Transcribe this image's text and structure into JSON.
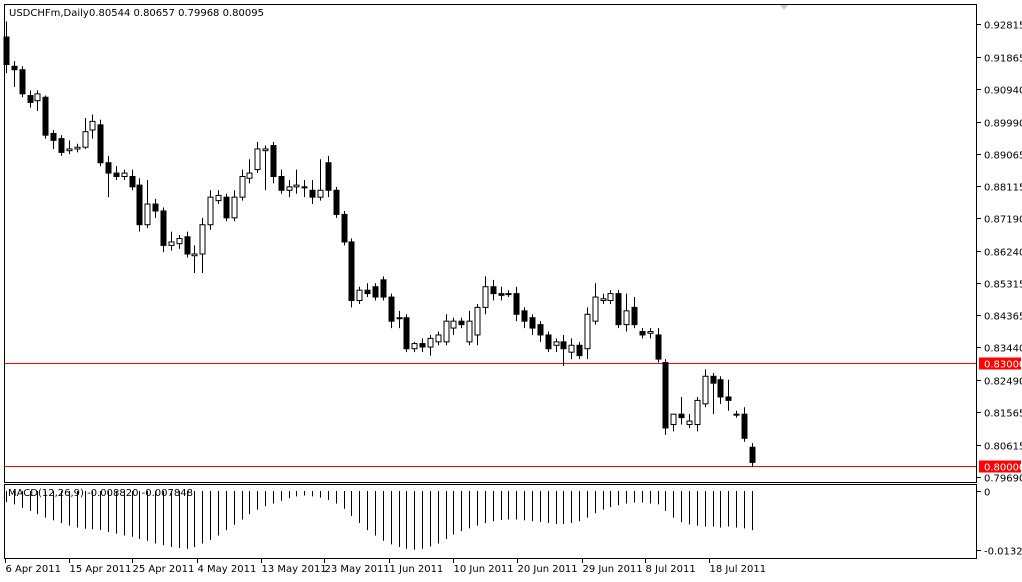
{
  "header": {
    "symbol": "USDCHFm,Daily",
    "ohlc": "0.80544 0.80657 0.79968 0.80095"
  },
  "indicator": {
    "label": "MACD(12,26,9) -0.008820 -0.007848"
  },
  "colors": {
    "background": "#ffffff",
    "border": "#000000",
    "candle_body_bear": "#000000",
    "candle_body_bull": "#ffffff",
    "hline": "#ff0000",
    "hline_label_bg": "#ff0000",
    "hline_label_text": "#ffffff"
  },
  "chart_data": {
    "type": "candlestick",
    "y_ticks": [
      "0.92815",
      "0.91865",
      "0.90940",
      "0.89990",
      "0.89065",
      "0.88115",
      "0.87190",
      "0.86240",
      "0.85315",
      "0.84365",
      "0.83440",
      "0.82490",
      "0.81565",
      "0.80615",
      "0.79690"
    ],
    "x_ticks": [
      "6 Apr 2011",
      "15 Apr 2011",
      "25 Apr 2011",
      "4 May 2011",
      "13 May 2011",
      "23 May 2011",
      "1 Jun 2011",
      "10 Jun 2011",
      "20 Jun 2011",
      "29 Jun 2011",
      "8 Jul 2011",
      "18 Jul 2011"
    ],
    "ylim": [
      0.7956,
      0.9335
    ],
    "horizontal_lines": [
      {
        "value": 0.83,
        "label": "0.83000"
      },
      {
        "value": 0.8,
        "label": "0.80000"
      }
    ],
    "candles": [
      {
        "o": 0.9245,
        "h": 0.929,
        "l": 0.914,
        "c": 0.9165
      },
      {
        "o": 0.916,
        "h": 0.9175,
        "l": 0.91,
        "c": 0.915
      },
      {
        "o": 0.915,
        "h": 0.916,
        "l": 0.907,
        "c": 0.908
      },
      {
        "o": 0.9075,
        "h": 0.909,
        "l": 0.904,
        "c": 0.9055
      },
      {
        "o": 0.906,
        "h": 0.909,
        "l": 0.903,
        "c": 0.908
      },
      {
        "o": 0.907,
        "h": 0.9075,
        "l": 0.895,
        "c": 0.896
      },
      {
        "o": 0.8965,
        "h": 0.8975,
        "l": 0.892,
        "c": 0.8945
      },
      {
        "o": 0.895,
        "h": 0.896,
        "l": 0.89,
        "c": 0.891
      },
      {
        "o": 0.8915,
        "h": 0.8945,
        "l": 0.8905,
        "c": 0.892
      },
      {
        "o": 0.892,
        "h": 0.8935,
        "l": 0.891,
        "c": 0.8925
      },
      {
        "o": 0.8925,
        "h": 0.901,
        "l": 0.892,
        "c": 0.897
      },
      {
        "o": 0.8975,
        "h": 0.902,
        "l": 0.895,
        "c": 0.9
      },
      {
        "o": 0.899,
        "h": 0.9005,
        "l": 0.887,
        "c": 0.888
      },
      {
        "o": 0.888,
        "h": 0.89,
        "l": 0.878,
        "c": 0.885
      },
      {
        "o": 0.885,
        "h": 0.887,
        "l": 0.883,
        "c": 0.884
      },
      {
        "o": 0.884,
        "h": 0.886,
        "l": 0.883,
        "c": 0.885
      },
      {
        "o": 0.884,
        "h": 0.886,
        "l": 0.88,
        "c": 0.881
      },
      {
        "o": 0.8815,
        "h": 0.8835,
        "l": 0.868,
        "c": 0.87
      },
      {
        "o": 0.87,
        "h": 0.883,
        "l": 0.869,
        "c": 0.876
      },
      {
        "o": 0.876,
        "h": 0.8775,
        "l": 0.872,
        "c": 0.874
      },
      {
        "o": 0.874,
        "h": 0.875,
        "l": 0.862,
        "c": 0.864
      },
      {
        "o": 0.864,
        "h": 0.868,
        "l": 0.8625,
        "c": 0.865
      },
      {
        "o": 0.8645,
        "h": 0.867,
        "l": 0.863,
        "c": 0.866
      },
      {
        "o": 0.8665,
        "h": 0.868,
        "l": 0.8605,
        "c": 0.8615
      },
      {
        "o": 0.861,
        "h": 0.864,
        "l": 0.856,
        "c": 0.8615
      },
      {
        "o": 0.8615,
        "h": 0.872,
        "l": 0.856,
        "c": 0.87
      },
      {
        "o": 0.87,
        "h": 0.88,
        "l": 0.8685,
        "c": 0.878
      },
      {
        "o": 0.877,
        "h": 0.88,
        "l": 0.876,
        "c": 0.8785
      },
      {
        "o": 0.878,
        "h": 0.879,
        "l": 0.871,
        "c": 0.872
      },
      {
        "o": 0.872,
        "h": 0.88,
        "l": 0.871,
        "c": 0.878
      },
      {
        "o": 0.878,
        "h": 0.886,
        "l": 0.877,
        "c": 0.884
      },
      {
        "o": 0.8835,
        "h": 0.889,
        "l": 0.882,
        "c": 0.885
      },
      {
        "o": 0.886,
        "h": 0.894,
        "l": 0.885,
        "c": 0.892
      },
      {
        "o": 0.8915,
        "h": 0.893,
        "l": 0.88,
        "c": 0.892
      },
      {
        "o": 0.893,
        "h": 0.894,
        "l": 0.882,
        "c": 0.884
      },
      {
        "o": 0.884,
        "h": 0.886,
        "l": 0.879,
        "c": 0.88
      },
      {
        "o": 0.88,
        "h": 0.883,
        "l": 0.878,
        "c": 0.881
      },
      {
        "o": 0.881,
        "h": 0.886,
        "l": 0.879,
        "c": 0.8815
      },
      {
        "o": 0.881,
        "h": 0.883,
        "l": 0.878,
        "c": 0.881
      },
      {
        "o": 0.88,
        "h": 0.883,
        "l": 0.876,
        "c": 0.878
      },
      {
        "o": 0.878,
        "h": 0.889,
        "l": 0.877,
        "c": 0.88
      },
      {
        "o": 0.888,
        "h": 0.89,
        "l": 0.878,
        "c": 0.88
      },
      {
        "o": 0.88,
        "h": 0.881,
        "l": 0.872,
        "c": 0.873
      },
      {
        "o": 0.873,
        "h": 0.874,
        "l": 0.864,
        "c": 0.865
      },
      {
        "o": 0.865,
        "h": 0.866,
        "l": 0.846,
        "c": 0.848
      },
      {
        "o": 0.848,
        "h": 0.852,
        "l": 0.847,
        "c": 0.851
      },
      {
        "o": 0.851,
        "h": 0.853,
        "l": 0.849,
        "c": 0.85
      },
      {
        "o": 0.852,
        "h": 0.853,
        "l": 0.848,
        "c": 0.849
      },
      {
        "o": 0.854,
        "h": 0.855,
        "l": 0.848,
        "c": 0.849
      },
      {
        "o": 0.849,
        "h": 0.85,
        "l": 0.84,
        "c": 0.842
      },
      {
        "o": 0.843,
        "h": 0.845,
        "l": 0.84,
        "c": 0.843
      },
      {
        "o": 0.843,
        "h": 0.844,
        "l": 0.833,
        "c": 0.834
      },
      {
        "o": 0.834,
        "h": 0.836,
        "l": 0.833,
        "c": 0.8355
      },
      {
        "o": 0.8355,
        "h": 0.837,
        "l": 0.833,
        "c": 0.8345
      },
      {
        "o": 0.8345,
        "h": 0.838,
        "l": 0.832,
        "c": 0.837
      },
      {
        "o": 0.836,
        "h": 0.839,
        "l": 0.835,
        "c": 0.838
      },
      {
        "o": 0.836,
        "h": 0.844,
        "l": 0.835,
        "c": 0.842
      },
      {
        "o": 0.84,
        "h": 0.843,
        "l": 0.838,
        "c": 0.842
      },
      {
        "o": 0.842,
        "h": 0.843,
        "l": 0.84,
        "c": 0.841
      },
      {
        "o": 0.836,
        "h": 0.845,
        "l": 0.835,
        "c": 0.842
      },
      {
        "o": 0.838,
        "h": 0.847,
        "l": 0.835,
        "c": 0.846
      },
      {
        "o": 0.846,
        "h": 0.855,
        "l": 0.844,
        "c": 0.852
      },
      {
        "o": 0.852,
        "h": 0.854,
        "l": 0.848,
        "c": 0.85
      },
      {
        "o": 0.85,
        "h": 0.852,
        "l": 0.848,
        "c": 0.8495
      },
      {
        "o": 0.85,
        "h": 0.851,
        "l": 0.849,
        "c": 0.85
      },
      {
        "o": 0.85,
        "h": 0.852,
        "l": 0.842,
        "c": 0.844
      },
      {
        "o": 0.845,
        "h": 0.846,
        "l": 0.84,
        "c": 0.842
      },
      {
        "o": 0.843,
        "h": 0.844,
        "l": 0.838,
        "c": 0.84
      },
      {
        "o": 0.841,
        "h": 0.842,
        "l": 0.836,
        "c": 0.838
      },
      {
        "o": 0.838,
        "h": 0.839,
        "l": 0.833,
        "c": 0.834
      },
      {
        "o": 0.835,
        "h": 0.837,
        "l": 0.833,
        "c": 0.836
      },
      {
        "o": 0.836,
        "h": 0.838,
        "l": 0.829,
        "c": 0.834
      },
      {
        "o": 0.833,
        "h": 0.837,
        "l": 0.831,
        "c": 0.835
      },
      {
        "o": 0.835,
        "h": 0.836,
        "l": 0.831,
        "c": 0.832
      },
      {
        "o": 0.834,
        "h": 0.846,
        "l": 0.831,
        "c": 0.844
      },
      {
        "o": 0.842,
        "h": 0.853,
        "l": 0.841,
        "c": 0.849
      },
      {
        "o": 0.848,
        "h": 0.85,
        "l": 0.847,
        "c": 0.8485
      },
      {
        "o": 0.848,
        "h": 0.851,
        "l": 0.847,
        "c": 0.85
      },
      {
        "o": 0.85,
        "h": 0.851,
        "l": 0.84,
        "c": 0.841
      },
      {
        "o": 0.841,
        "h": 0.85,
        "l": 0.839,
        "c": 0.845
      },
      {
        "o": 0.846,
        "h": 0.849,
        "l": 0.84,
        "c": 0.841
      },
      {
        "o": 0.839,
        "h": 0.84,
        "l": 0.837,
        "c": 0.838
      },
      {
        "o": 0.8385,
        "h": 0.84,
        "l": 0.837,
        "c": 0.839
      },
      {
        "o": 0.838,
        "h": 0.84,
        "l": 0.83,
        "c": 0.831
      },
      {
        "o": 0.83,
        "h": 0.831,
        "l": 0.809,
        "c": 0.811
      },
      {
        "o": 0.812,
        "h": 0.814,
        "l": 0.81,
        "c": 0.815
      },
      {
        "o": 0.815,
        "h": 0.82,
        "l": 0.812,
        "c": 0.814
      },
      {
        "o": 0.812,
        "h": 0.815,
        "l": 0.811,
        "c": 0.813
      },
      {
        "o": 0.812,
        "h": 0.82,
        "l": 0.81,
        "c": 0.819
      },
      {
        "o": 0.818,
        "h": 0.828,
        "l": 0.817,
        "c": 0.826
      },
      {
        "o": 0.826,
        "h": 0.827,
        "l": 0.815,
        "c": 0.824
      },
      {
        "o": 0.825,
        "h": 0.826,
        "l": 0.818,
        "c": 0.82
      },
      {
        "o": 0.82,
        "h": 0.825,
        "l": 0.816,
        "c": 0.819
      },
      {
        "o": 0.815,
        "h": 0.816,
        "l": 0.814,
        "c": 0.815
      },
      {
        "o": 0.815,
        "h": 0.817,
        "l": 0.807,
        "c": 0.808
      },
      {
        "o": 0.8054,
        "h": 0.8066,
        "l": 0.7997,
        "c": 0.801
      }
    ],
    "macd_axis_labels": [
      "0",
      "-0.01323"
    ],
    "macd_ylim": [
      -0.0135,
      0
    ],
    "macd": [
      -0.0025,
      -0.003,
      -0.0038,
      -0.0045,
      -0.0052,
      -0.006,
      -0.0066,
      -0.0072,
      -0.0078,
      -0.0082,
      -0.0085,
      -0.0086,
      -0.0088,
      -0.0092,
      -0.0096,
      -0.01,
      -0.0103,
      -0.0108,
      -0.0112,
      -0.0118,
      -0.0122,
      -0.0126,
      -0.0128,
      -0.013,
      -0.0126,
      -0.0118,
      -0.011,
      -0.01,
      -0.0088,
      -0.0076,
      -0.0064,
      -0.0052,
      -0.0042,
      -0.0034,
      -0.0028,
      -0.0022,
      -0.0016,
      -0.0012,
      -0.001,
      -0.0012,
      -0.0015,
      -0.002,
      -0.0028,
      -0.004,
      -0.0056,
      -0.0072,
      -0.0088,
      -0.01,
      -0.0112,
      -0.012,
      -0.0126,
      -0.013,
      -0.0132,
      -0.013,
      -0.0125,
      -0.0118,
      -0.0108,
      -0.0098,
      -0.009,
      -0.0084,
      -0.0078,
      -0.0072,
      -0.0068,
      -0.0065,
      -0.0064,
      -0.0064,
      -0.0066,
      -0.0068,
      -0.007,
      -0.0072,
      -0.0074,
      -0.0074,
      -0.0072,
      -0.0068,
      -0.006,
      -0.005,
      -0.0042,
      -0.0036,
      -0.0032,
      -0.0028,
      -0.0026,
      -0.0026,
      -0.0028,
      -0.003,
      -0.0045,
      -0.006,
      -0.007,
      -0.0075,
      -0.0078,
      -0.008,
      -0.008,
      -0.0082,
      -0.008,
      -0.0082,
      -0.0084,
      -0.0088
    ]
  }
}
